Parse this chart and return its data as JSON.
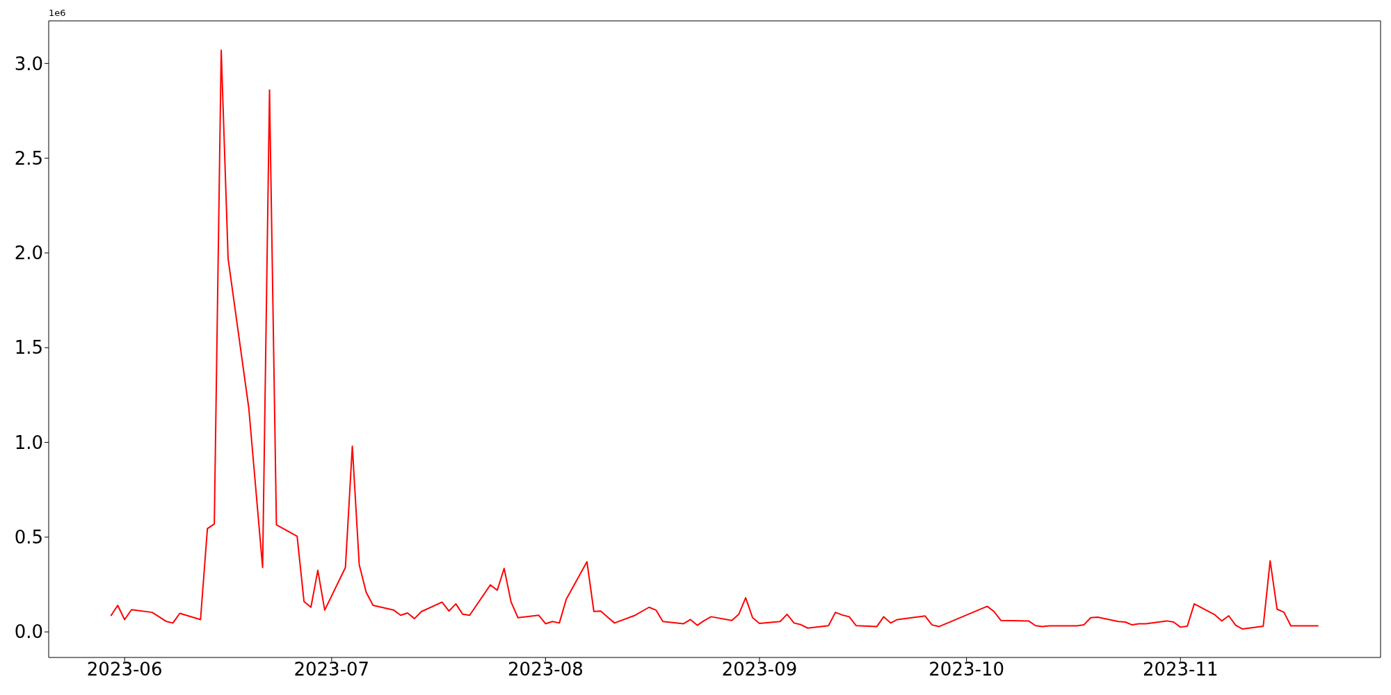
{
  "chart_data": {
    "type": "line",
    "annotations": [
      "1e6"
    ],
    "x": [
      "2023-05-30",
      "2023-05-31",
      "2023-06-01",
      "2023-06-02",
      "2023-06-05",
      "2023-06-07",
      "2023-06-08",
      "2023-06-09",
      "2023-06-12",
      "2023-06-13",
      "2023-06-14",
      "2023-06-15",
      "2023-06-16",
      "2023-06-19",
      "2023-06-21",
      "2023-06-22",
      "2023-06-23",
      "2023-06-26",
      "2023-06-27",
      "2023-06-28",
      "2023-06-29",
      "2023-06-30",
      "2023-07-03",
      "2023-07-04",
      "2023-07-05",
      "2023-07-06",
      "2023-07-07",
      "2023-07-10",
      "2023-07-11",
      "2023-07-12",
      "2023-07-13",
      "2023-07-14",
      "2023-07-17",
      "2023-07-18",
      "2023-07-19",
      "2023-07-20",
      "2023-07-21",
      "2023-07-24",
      "2023-07-25",
      "2023-07-26",
      "2023-07-27",
      "2023-07-28",
      "2023-07-31",
      "2023-08-01",
      "2023-08-02",
      "2023-08-03",
      "2023-08-04",
      "2023-08-07",
      "2023-08-08",
      "2023-08-09",
      "2023-08-10",
      "2023-08-11",
      "2023-08-14",
      "2023-08-16",
      "2023-08-17",
      "2023-08-18",
      "2023-08-21",
      "2023-08-22",
      "2023-08-23",
      "2023-08-24",
      "2023-08-25",
      "2023-08-28",
      "2023-08-29",
      "2023-08-30",
      "2023-08-31",
      "2023-09-01",
      "2023-09-04",
      "2023-09-05",
      "2023-09-06",
      "2023-09-07",
      "2023-09-08",
      "2023-09-11",
      "2023-09-12",
      "2023-09-13",
      "2023-09-14",
      "2023-09-15",
      "2023-09-18",
      "2023-09-19",
      "2023-09-20",
      "2023-09-21",
      "2023-09-25",
      "2023-09-26",
      "2023-09-27",
      "2023-10-04",
      "2023-10-05",
      "2023-10-06",
      "2023-10-10",
      "2023-10-11",
      "2023-10-12",
      "2023-10-13",
      "2023-10-17",
      "2023-10-18",
      "2023-10-19",
      "2023-10-20",
      "2023-10-23",
      "2023-10-24",
      "2023-10-25",
      "2023-10-26",
      "2023-10-27",
      "2023-10-30",
      "2023-10-31",
      "2023-11-01",
      "2023-11-02",
      "2023-11-03",
      "2023-11-06",
      "2023-11-07",
      "2023-11-08",
      "2023-11-09",
      "2023-11-10",
      "2023-11-13",
      "2023-11-14",
      "2023-11-15",
      "2023-11-16",
      "2023-11-17",
      "2023-11-21"
    ],
    "series": [
      {
        "color": "#ff0000",
        "values": [
          0.084,
          0.14,
          0.065,
          0.117,
          0.103,
          0.056,
          0.047,
          0.098,
          0.065,
          0.545,
          0.57,
          3.07,
          1.97,
          1.18,
          0.34,
          2.86,
          0.565,
          0.505,
          0.16,
          0.13,
          0.325,
          0.115,
          0.34,
          0.98,
          0.355,
          0.21,
          0.14,
          0.115,
          0.088,
          0.1,
          0.07,
          0.107,
          0.157,
          0.11,
          0.148,
          0.093,
          0.088,
          0.248,
          0.22,
          0.335,
          0.158,
          0.075,
          0.088,
          0.043,
          0.055,
          0.047,
          0.172,
          0.37,
          0.108,
          0.11,
          0.078,
          0.047,
          0.088,
          0.13,
          0.115,
          0.055,
          0.043,
          0.065,
          0.035,
          0.06,
          0.08,
          0.06,
          0.093,
          0.18,
          0.075,
          0.045,
          0.055,
          0.093,
          0.047,
          0.038,
          0.02,
          0.033,
          0.103,
          0.089,
          0.08,
          0.033,
          0.028,
          0.08,
          0.047,
          0.065,
          0.084,
          0.037,
          0.028,
          0.135,
          0.107,
          0.06,
          0.058,
          0.033,
          0.028,
          0.032,
          0.032,
          0.037,
          0.075,
          0.078,
          0.055,
          0.052,
          0.037,
          0.043,
          0.043,
          0.058,
          0.052,
          0.025,
          0.03,
          0.148,
          0.09,
          0.058,
          0.085,
          0.035,
          0.015,
          0.03,
          0.375,
          0.12,
          0.104,
          0.032,
          0.032
        ]
      }
    ],
    "xlim": [
      "2023-05-21",
      "2023-11-30"
    ],
    "xticks": [
      {
        "value": "2023-06-01",
        "label": "2023-06"
      },
      {
        "value": "2023-07-01",
        "label": "2023-07"
      },
      {
        "value": "2023-08-01",
        "label": "2023-08"
      },
      {
        "value": "2023-09-01",
        "label": "2023-09"
      },
      {
        "value": "2023-10-01",
        "label": "2023-10"
      },
      {
        "value": "2023-11-01",
        "label": "2023-11"
      }
    ],
    "ylim": [
      -0.135,
      3.225
    ],
    "yticks": [
      {
        "value": 0,
        "label": "0.0"
      },
      {
        "value": 0.5,
        "label": "0.5"
      },
      {
        "value": 1,
        "label": "1.0"
      },
      {
        "value": 1.5,
        "label": "1.5"
      },
      {
        "value": 2,
        "label": "2.0"
      },
      {
        "value": 2.5,
        "label": "2.5"
      },
      {
        "value": 3,
        "label": "3.0"
      }
    ],
    "grid": false,
    "legend": false,
    "marker": "none",
    "line_style": "solid"
  }
}
